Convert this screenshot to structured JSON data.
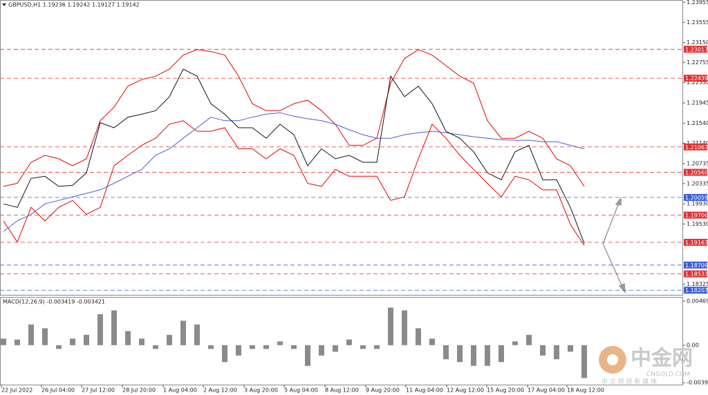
{
  "chart_data": [
    {
      "type": "line",
      "title": "GBPUSD,H1  1.19236 1.19242 1.19127 1.19142",
      "xlim": [
        -0.25,
        49.15
      ],
      "ylim": [
        1.181,
        1.24
      ],
      "yticks": [
        1.23955,
        1.23555,
        {
          "value": 1.2315,
          "label": "1.23150"
        },
        1.22755,
        {
          "value": 1.2235,
          "label": "1.22350"
        },
        1.21945,
        {
          "value": 1.2154,
          "label": "1.21540"
        },
        {
          "value": 1.2114,
          "label": "1.21140"
        },
        1.20735,
        1.20335,
        {
          "value": 1.1993,
          "label": "1.19930"
        },
        {
          "value": 1.1953,
          "label": "1.19530"
        },
        1.18325
      ],
      "levels": {
        "values": [
          1.23017,
          1.22439,
          1.21067,
          1.2056,
          1.20059,
          1.19706,
          1.19163,
          1.18709,
          1.18533,
          1.18207
        ],
        "value_labels": [
          "1.23017",
          "1.22439",
          "1.21067",
          "1.20560",
          "1.20059",
          "1.19706",
          "1.19163",
          "1.18709",
          "1.18533",
          "1.18207"
        ],
        "colors": [
          "#e03030",
          "#e03030",
          "#e03030",
          "#e03030",
          "#3a5fd8",
          "#e03030",
          "#e03030",
          "#3a5fd8",
          "#e03030",
          "#3a5fd8"
        ]
      },
      "series": [
        {
          "color": "#e00000",
          "values": [
            1.2028,
            1.2034,
            1.2076,
            1.209,
            1.2083,
            1.2069,
            1.2083,
            1.2159,
            1.2186,
            1.2228,
            1.2241,
            1.2248,
            1.2262,
            1.229,
            1.2301,
            1.2297,
            1.229,
            1.2248,
            1.2193,
            1.2179,
            1.2179,
            1.2193,
            1.22,
            1.2179,
            1.2152,
            1.211,
            1.211,
            1.2124,
            1.2234,
            1.2283,
            1.2301,
            1.229,
            1.2269,
            1.2248,
            1.2234,
            1.2159,
            1.2124,
            1.2124,
            1.2138,
            1.2124,
            1.2083,
            1.2069,
            1.2028
          ]
        },
        {
          "color": "#e00000",
          "values": [
            1.1959,
            1.1917,
            1.1986,
            1.1959,
            1.1986,
            1.2,
            1.1972,
            1.1986,
            1.2069,
            1.209,
            1.211,
            1.2124,
            1.2152,
            1.2159,
            1.2138,
            1.2138,
            1.2145,
            1.2103,
            1.2103,
            1.2083,
            1.2103,
            1.209,
            1.2034,
            1.2028,
            1.2062,
            1.2048,
            1.2048,
            1.2048,
            1.2,
            1.2007,
            1.2083,
            1.2152,
            1.2124,
            1.209,
            1.2062,
            1.2034,
            1.2007,
            1.2048,
            1.2041,
            1.2021,
            1.2021,
            1.1952,
            1.191
          ]
        },
        {
          "color": "#4a5ccc",
          "values": [
            1.1938,
            1.1959,
            1.1972,
            1.1993,
            1.2,
            1.2007,
            1.2014,
            1.2021,
            1.2034,
            1.2048,
            1.2062,
            1.209,
            1.2103,
            1.2124,
            1.2145,
            1.2166,
            1.2159,
            1.2159,
            1.2166,
            1.2172,
            1.2175,
            1.2168,
            1.2163,
            1.2159,
            1.2152,
            1.2141,
            1.2131,
            1.2124,
            1.2124,
            1.2131,
            1.2135,
            1.2138,
            1.2135,
            1.2131,
            1.2127,
            1.2124,
            1.2121,
            1.212,
            1.212,
            1.2117,
            1.2117,
            1.211,
            1.2103
          ]
        },
        {
          "color": "#111111",
          "values": [
            1.1993,
            1.1986,
            1.2044,
            1.2048,
            1.2028,
            1.203,
            1.2055,
            1.2155,
            1.2145,
            1.2166,
            1.2172,
            1.2179,
            1.2207,
            1.2262,
            1.2248,
            1.2193,
            1.2172,
            1.2145,
            1.2145,
            1.2124,
            1.2152,
            1.2131,
            1.2069,
            1.2103,
            1.2083,
            1.209,
            1.2076,
            1.2076,
            1.2248,
            1.2207,
            1.2228,
            1.2193,
            1.2138,
            1.2124,
            1.2097,
            1.2055,
            1.2041,
            1.2097,
            1.211,
            1.2041,
            1.2041,
            1.1986,
            1.19142
          ]
        }
      ]
    },
    {
      "type": "bar",
      "title": "MACD(12,26,9) -0.003419 -0.003421",
      "color": "#8a8a8a",
      "xlim": [
        -0.25,
        49.15
      ],
      "ylim": [
        -0.0042,
        0.00506
      ],
      "yticks": [
        0.004696,
        {
          "value": 0,
          "label": "0.00"
        },
        -0.003995
      ],
      "xticks": [
        {
          "value": -0.15,
          "label": "22 Jul 2022"
        },
        {
          "value": 2.75,
          "label": "26 Jul 04:00"
        },
        {
          "value": 5.65,
          "label": "27 Jul 12:00"
        },
        {
          "value": 8.6,
          "label": "28 Jul 20:00"
        },
        {
          "value": 11.55,
          "label": "1 Aug 04:00"
        },
        {
          "value": 14.45,
          "label": "2 Aug 12:00"
        },
        {
          "value": 17.4,
          "label": "3 Aug 20:00"
        },
        {
          "value": 20.3,
          "label": "5 Aug 04:00"
        },
        {
          "value": 23.25,
          "label": "8 Aug 12:00"
        },
        {
          "value": 26.2,
          "label": "9 Aug 20:00"
        },
        {
          "value": 29.1,
          "label": "11 Aug 04:00"
        },
        {
          "value": 32.05,
          "label": "12 Aug 12:00"
        },
        {
          "value": 34.95,
          "label": "15 Aug 20:00"
        },
        {
          "value": 37.9,
          "label": "17 Aug 04:00"
        },
        {
          "value": 40.75,
          "label": "18 Aug 12:00"
        }
      ],
      "values": [
        0.0007,
        0.0006,
        0.0022,
        0.0018,
        -0.0004,
        0.0007,
        0.0011,
        0.0033,
        0.0037,
        0.0015,
        0.0007,
        -0.0004,
        0.0011,
        0.0026,
        0.0022,
        -0.0004,
        -0.0018,
        -0.0011,
        -0.0004,
        -0.0004,
        0.0004,
        -0.0004,
        -0.0022,
        -0.0011,
        -0.0007,
        0.0006,
        -0.0004,
        -0.0004,
        0.004,
        0.0037,
        0.0018,
        0.0007,
        -0.0015,
        -0.0018,
        -0.0022,
        -0.0022,
        -0.0018,
        0.0004,
        0.0011,
        -0.0011,
        -0.0015,
        -0.0007,
        -0.0035
      ]
    }
  ],
  "watermark": {
    "brand": "中金网",
    "site": "CNGOLD.COM",
    "slogan": "中 文 财 经 新 媒 体"
  }
}
